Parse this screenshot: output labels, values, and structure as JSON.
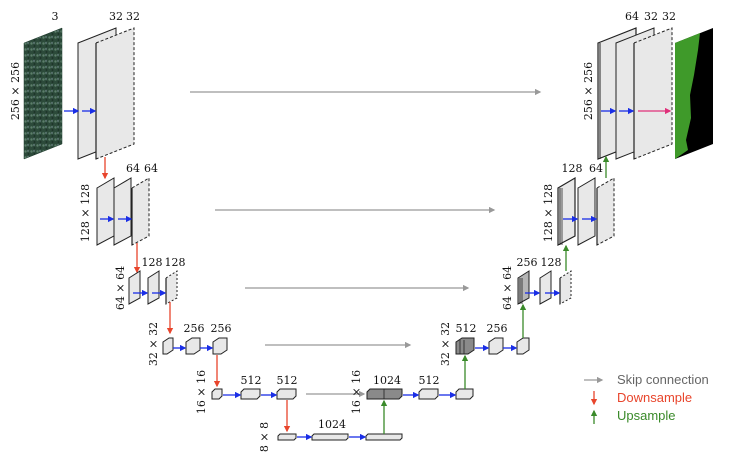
{
  "levels": {
    "l0": {
      "dim": "256 × 256",
      "in_ch": "3",
      "enc_a": "32",
      "enc_b": "32",
      "dec_a": "64",
      "dec_b": "32",
      "dec_c": "32",
      "dec_dim": "256 × 256"
    },
    "l1": {
      "dim": "128 × 128",
      "enc_a": "64",
      "enc_b": "64",
      "dec_a": "128",
      "dec_b": "64",
      "dec_dim": "128 × 128"
    },
    "l2": {
      "dim": "64 × 64",
      "enc_a": "128",
      "enc_b": "128",
      "dec_a": "256",
      "dec_b": "128",
      "dec_dim": "64 × 64"
    },
    "l3": {
      "dim": "32 × 32",
      "enc_a": "256",
      "enc_b": "256",
      "dec_a": "512",
      "dec_b": "256",
      "dec_dim": "32 × 32"
    },
    "l4": {
      "dim": "16 × 16",
      "enc_a": "512",
      "enc_b": "512",
      "dec_a": "1024",
      "dec_b": "512",
      "dec_dim": "16 × 16"
    },
    "l5": {
      "dim": "8 × 8",
      "a": "1024"
    }
  },
  "legend": {
    "skip": {
      "label": "Skip connection",
      "color": "#999999"
    },
    "down": {
      "label": "Downsample",
      "color": "#e8452c"
    },
    "up": {
      "label": "Upsample",
      "color": "#3a8a2a"
    }
  },
  "colors": {
    "conv_arrow": "#1a2ee6",
    "output_arrow": "#e0307a",
    "mask_green": "#3f9a2a",
    "mask_black": "#000000"
  }
}
